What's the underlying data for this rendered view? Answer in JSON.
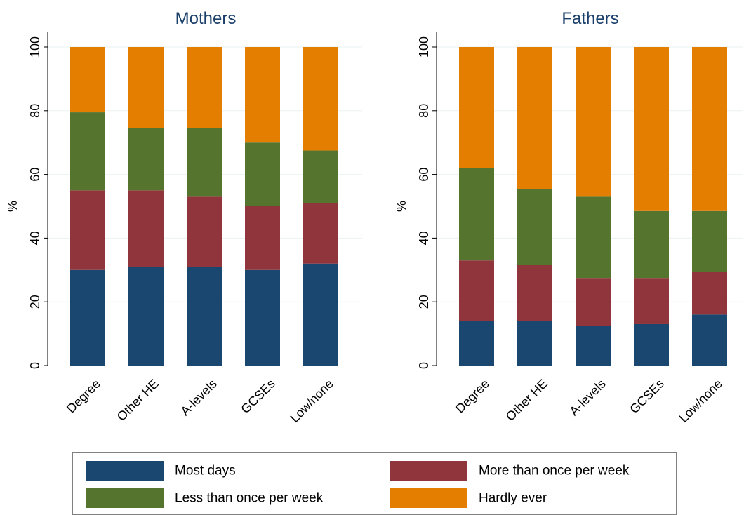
{
  "chart_data": [
    {
      "type": "bar",
      "stacked": true,
      "title": "Mothers",
      "ylabel": "%",
      "ylim": [
        0,
        100
      ],
      "yticks": [
        0,
        20,
        40,
        60,
        80,
        100
      ],
      "grid": true,
      "categories": [
        "Degree",
        "Other HE",
        "A-levels",
        "GCSEs",
        "Low/none"
      ],
      "series": [
        {
          "name": "Most days",
          "color": "#1a476f",
          "values": [
            30,
            31,
            31,
            30,
            32
          ]
        },
        {
          "name": "More than once per week",
          "color": "#90353b",
          "values": [
            25,
            24,
            22,
            20,
            19
          ]
        },
        {
          "name": "Less than once per week",
          "color": "#55752f",
          "values": [
            24.5,
            19.5,
            21.5,
            20,
            16.5
          ]
        },
        {
          "name": "Hardly ever",
          "color": "#e37e00",
          "values": [
            20.5,
            25.5,
            25.5,
            30,
            32.5
          ]
        }
      ]
    },
    {
      "type": "bar",
      "stacked": true,
      "title": "Fathers",
      "ylabel": "%",
      "ylim": [
        0,
        100
      ],
      "yticks": [
        0,
        20,
        40,
        60,
        80,
        100
      ],
      "grid": true,
      "categories": [
        "Degree",
        "Other HE",
        "A-levels",
        "GCSEs",
        "Low/none"
      ],
      "series": [
        {
          "name": "Most days",
          "color": "#1a476f",
          "values": [
            14,
            14,
            12.5,
            13,
            16
          ]
        },
        {
          "name": "More than once per week",
          "color": "#90353b",
          "values": [
            19,
            17.5,
            15,
            14.5,
            13.5
          ]
        },
        {
          "name": "Less than once per week",
          "color": "#55752f",
          "values": [
            29,
            24,
            25.5,
            21,
            19
          ]
        },
        {
          "name": "Hardly ever",
          "color": "#e37e00",
          "values": [
            38,
            44.5,
            47,
            51.5,
            51.5
          ]
        }
      ]
    }
  ],
  "legend": {
    "position": "bottom",
    "items": [
      {
        "label": "Most days",
        "color": "#1a476f"
      },
      {
        "label": "More than once per week",
        "color": "#90353b"
      },
      {
        "label": "Less than once per week",
        "color": "#55752f"
      },
      {
        "label": "Hardly ever",
        "color": "#e37e00"
      }
    ]
  }
}
